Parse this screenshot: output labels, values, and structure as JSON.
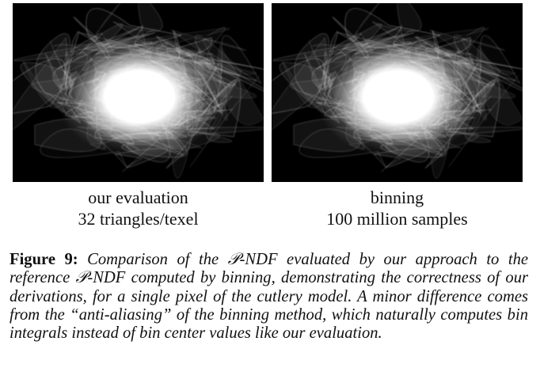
{
  "panels": [
    {
      "title": "our evaluation",
      "subtitle": "32 triangles/texel"
    },
    {
      "title": "binning",
      "subtitle": "100 million samples"
    }
  ],
  "figure_caption": {
    "label": "Figure 9:",
    "text": "Comparison of the 𝒫-NDF evaluated by our approach to the reference 𝒫-NDF computed by binning, demonstrating the correctness of our derivations, for a single pixel of the cutlery model. A minor difference comes from the “anti-aliasing” of the binning method, which naturally computes bin integrals instead of bin center values like our evaluation."
  }
}
